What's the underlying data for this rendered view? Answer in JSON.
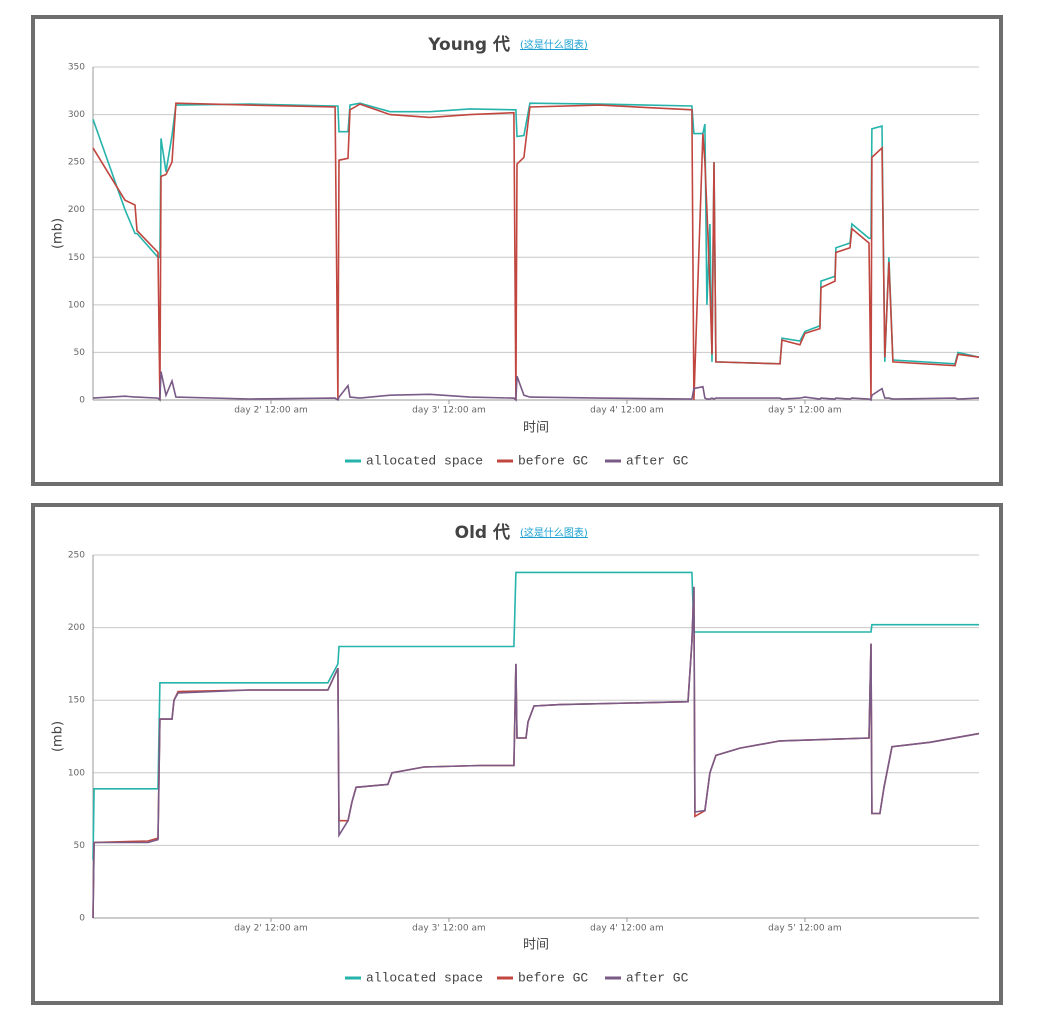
{
  "chart_data": [
    {
      "type": "line",
      "title": "Young 代",
      "link": "(这是什么图表)",
      "ylabel": "(mb)",
      "xlabel": "时间",
      "grid": true,
      "legend": "bottom",
      "ylim": [
        0,
        350
      ],
      "yticks": [
        0,
        50,
        100,
        150,
        200,
        250,
        300,
        350
      ],
      "xlim": [
        1,
        5.978
      ],
      "xticks": [
        {
          "value": 2,
          "label": "day 2' 12:00 am"
        },
        {
          "value": 3,
          "label": "day 3' 12:00 am"
        },
        {
          "value": 4,
          "label": "day 4' 12:00 am"
        },
        {
          "value": 5,
          "label": "day 5' 12:00 am"
        }
      ],
      "x": [
        1,
        1.18,
        1.236,
        1.247,
        1.365,
        1.376,
        1.382,
        1.41,
        1.444,
        1.466,
        1.882,
        2.36,
        2.376,
        2.382,
        2.433,
        2.444,
        2.5,
        2.669,
        2.893,
        3.118,
        3.365,
        3.376,
        3.382,
        3.421,
        3.455,
        3.848,
        4.365,
        4.376,
        4.427,
        4.438,
        4.449,
        4.466,
        4.478,
        4.489,
        4.5,
        4.86,
        4.871,
        4.972,
        5,
        5.084,
        5.09,
        5.169,
        5.174,
        5.253,
        5.264,
        5.36,
        5.371,
        5.376,
        5.433,
        5.449,
        5.472,
        5.494,
        5.843,
        5.86,
        5.978
      ],
      "series": [
        {
          "name": "allocated space",
          "color": "#26b3ab",
          "values": [
            295,
            200,
            175,
            175,
            150,
            150,
            275,
            240,
            278,
            310,
            311,
            309,
            309,
            282,
            282,
            310,
            312,
            303,
            303,
            306,
            305,
            305,
            277,
            278,
            312,
            311,
            309,
            280,
            280,
            290,
            100,
            185,
            40,
            250,
            40,
            38,
            65,
            62,
            72,
            78,
            125,
            130,
            160,
            165,
            185,
            170,
            170,
            285,
            288,
            40,
            150,
            42,
            38,
            50,
            45
          ]
        },
        {
          "name": "before GC",
          "color": "#c0463f",
          "values": [
            265,
            210,
            205,
            178,
            155,
            0,
            235,
            237,
            250,
            312,
            310,
            308,
            0,
            252,
            254,
            305,
            311,
            300,
            297,
            300,
            302,
            0,
            248,
            255,
            308,
            310,
            305,
            0,
            280,
            250,
            200,
            120,
            48,
            250,
            40,
            38,
            63,
            58,
            70,
            75,
            118,
            125,
            155,
            160,
            180,
            165,
            0,
            255,
            265,
            45,
            145,
            40,
            36,
            48,
            45
          ]
        },
        {
          "name": "after GC",
          "color": "#7a5a86",
          "values": [
            2,
            4,
            3,
            3,
            2,
            0,
            30,
            5,
            20,
            3,
            1,
            2,
            0,
            3,
            15,
            3,
            2,
            5,
            6,
            3,
            2,
            0,
            25,
            5,
            3,
            2,
            1,
            12,
            14,
            2,
            1,
            1,
            2,
            1,
            2,
            2,
            1,
            2,
            3,
            1,
            2,
            1,
            2,
            1,
            2,
            1,
            0,
            5,
            12,
            2,
            2,
            1,
            2,
            1,
            2
          ]
        }
      ]
    },
    {
      "type": "line",
      "title": "Old 代",
      "link": "(这是什么图表)",
      "ylabel": "(mb)",
      "xlabel": "时间",
      "grid": true,
      "legend": "bottom",
      "ylim": [
        0,
        250
      ],
      "yticks": [
        0,
        50,
        100,
        150,
        200,
        250
      ],
      "xlim": [
        1,
        5.978
      ],
      "xticks": [
        {
          "value": 2,
          "label": "day 2' 12:00 am"
        },
        {
          "value": 3,
          "label": "day 3' 12:00 am"
        },
        {
          "value": 4,
          "label": "day 4' 12:00 am"
        },
        {
          "value": 5,
          "label": "day 5' 12:00 am"
        }
      ],
      "x": [
        1,
        1.006,
        1.309,
        1.365,
        1.376,
        1.444,
        1.455,
        1.478,
        1.882,
        2.32,
        2.376,
        2.382,
        2.433,
        2.455,
        2.478,
        2.657,
        2.68,
        2.86,
        3.174,
        3.365,
        3.376,
        3.382,
        3.433,
        3.444,
        3.478,
        3.624,
        4.343,
        4.365,
        4.376,
        4.382,
        4.438,
        4.466,
        4.5,
        4.635,
        4.86,
        5.36,
        5.371,
        5.376,
        5.421,
        5.444,
        5.489,
        5.702,
        5.978
      ],
      "series": [
        {
          "name": "allocated space",
          "color": "#26b3ab",
          "values": [
            40,
            89,
            89,
            89,
            162,
            162,
            162,
            162,
            162,
            162,
            175,
            187,
            187,
            187,
            187,
            187,
            187,
            187,
            187,
            187,
            238,
            238,
            238,
            238,
            238,
            238,
            238,
            238,
            197,
            197,
            197,
            197,
            197,
            197,
            197,
            197,
            197,
            202,
            202,
            202,
            202,
            202,
            202
          ]
        },
        {
          "name": "before GC",
          "color": "#c0463f",
          "values": [
            0,
            52,
            53,
            55,
            137,
            137,
            150,
            156,
            157,
            157,
            172,
            67,
            67,
            80,
            90,
            92,
            100,
            104,
            105,
            105,
            175,
            124,
            124,
            135,
            146,
            147,
            149,
            190,
            228,
            70,
            74,
            100,
            112,
            117,
            122,
            124,
            189,
            72,
            72,
            90,
            118,
            121,
            127
          ]
        },
        {
          "name": "after GC",
          "color": "#7a5a86",
          "values": [
            0,
            52,
            52,
            54,
            137,
            137,
            150,
            155,
            157,
            157,
            172,
            57,
            67,
            80,
            90,
            92,
            100,
            104,
            105,
            105,
            175,
            124,
            124,
            135,
            146,
            147,
            149,
            190,
            228,
            73,
            74,
            100,
            112,
            117,
            122,
            124,
            189,
            72,
            72,
            90,
            118,
            121,
            127
          ]
        }
      ]
    }
  ]
}
